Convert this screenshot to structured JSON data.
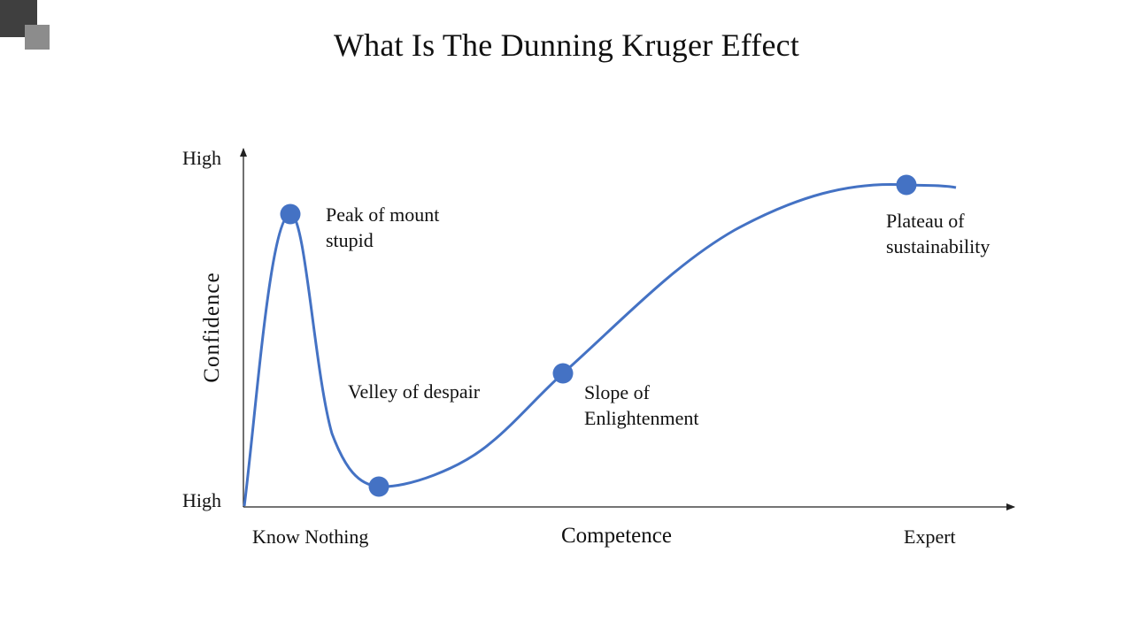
{
  "title": "What Is The Dunning Kruger Effect",
  "colors": {
    "curve": "#4472c4",
    "axis": "#222222"
  },
  "chart_data": {
    "type": "line",
    "y_axis": {
      "label": "Confidence",
      "top_tick": "High",
      "bottom_tick": "High"
    },
    "x_axis": {
      "label": "Competence",
      "left_tick": "Know Nothing",
      "right_tick": "Expert"
    },
    "points": [
      {
        "name": "Peak of mount\nstupid"
      },
      {
        "name": "Velley of despair"
      },
      {
        "name": "Slope of\nEnlightenment"
      },
      {
        "name": "Plateau of\nsustainability"
      }
    ]
  }
}
